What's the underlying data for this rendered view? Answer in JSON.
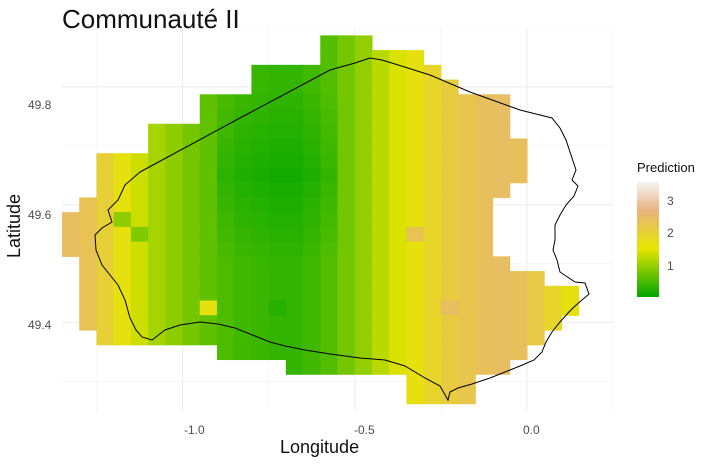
{
  "title": "Communauté II",
  "chart_data": {
    "type": "heatmap",
    "title": "Communauté II",
    "xlabel": "Longitude",
    "ylabel": "Latitude",
    "xlim": [
      -1.35,
      0.25
    ],
    "ylim": [
      49.25,
      49.9
    ],
    "x_ticks": [
      -1.0,
      -0.5,
      0.0
    ],
    "x_tick_labels": [
      "-1.0",
      "-0.5",
      "0.0"
    ],
    "y_ticks": [
      49.4,
      49.6,
      49.8
    ],
    "y_tick_labels": [
      "49.4",
      "49.6",
      "49.8"
    ],
    "grid": true,
    "legend": {
      "title": "Prediction",
      "position": "right",
      "range": [
        0.2,
        3.7
      ],
      "ticks": [
        1,
        2,
        3
      ],
      "tick_labels": [
        "1",
        "2",
        "3"
      ],
      "colors": [
        "#00a600",
        "#e6e600",
        "#e9b27e",
        "#f5f5f5"
      ]
    },
    "cell_size": {
      "lon": 0.05,
      "lat": 0.025
    },
    "grid_origin": {
      "lon": -1.325,
      "lat": 49.875
    },
    "rows": [
      {
        "lat": 49.875,
        "start": 15,
        "end": 17
      },
      {
        "lat": 49.85,
        "start": 15,
        "end": 20
      },
      {
        "lat": 49.825,
        "start": 11,
        "end": 21
      },
      {
        "lat": 49.8,
        "start": 11,
        "end": 22
      },
      {
        "lat": 49.775,
        "start": 8,
        "end": 25
      },
      {
        "lat": 49.75,
        "start": 8,
        "end": 25
      },
      {
        "lat": 49.725,
        "start": 5,
        "end": 25
      },
      {
        "lat": 49.7,
        "start": 5,
        "end": 26
      },
      {
        "lat": 49.675,
        "start": 2,
        "end": 26
      },
      {
        "lat": 49.65,
        "start": 2,
        "end": 26
      },
      {
        "lat": 49.625,
        "start": 2,
        "end": 25
      },
      {
        "lat": 49.6,
        "start": 1,
        "end": 24
      },
      {
        "lat": 49.575,
        "start": 0,
        "end": 24
      },
      {
        "lat": 49.55,
        "start": 0,
        "end": 24
      },
      {
        "lat": 49.525,
        "start": 0,
        "end": 24
      },
      {
        "lat": 49.5,
        "start": 1,
        "end": 25
      },
      {
        "lat": 49.475,
        "start": 1,
        "end": 27
      },
      {
        "lat": 49.45,
        "start": 1,
        "end": 29
      },
      {
        "lat": 49.425,
        "start": 1,
        "end": 29
      },
      {
        "lat": 49.4,
        "start": 1,
        "end": 28
      },
      {
        "lat": 49.375,
        "start": 2,
        "end": 27
      },
      {
        "lat": 49.35,
        "start": 9,
        "end": 26
      },
      {
        "lat": 49.325,
        "start": 13,
        "end": 25
      },
      {
        "lat": 49.3,
        "start": 20,
        "end": 23
      },
      {
        "lat": 49.275,
        "start": 20,
        "end": 23
      }
    ],
    "column_prediction": [
      2.7,
      2.6,
      2.4,
      2.1,
      1.8,
      1.5,
      1.3,
      1.1,
      0.95,
      0.8,
      0.7,
      0.65,
      0.6,
      0.6,
      0.7,
      0.85,
      1.1,
      1.35,
      1.65,
      1.9,
      2.1,
      2.3,
      2.45,
      2.55,
      2.65,
      2.7,
      2.65,
      2.5,
      2.3,
      2.1
    ],
    "anomalies": [
      {
        "col": 3,
        "row": 12,
        "value": 1.3
      },
      {
        "col": 4,
        "row": 13,
        "value": 1.2
      },
      {
        "col": 5,
        "row": 18,
        "value": 1.5
      },
      {
        "col": 8,
        "row": 18,
        "value": 2.1
      },
      {
        "col": 12,
        "row": 18,
        "value": 0.5
      },
      {
        "col": 20,
        "row": 13,
        "value": 2.6
      },
      {
        "col": 22,
        "row": 18,
        "value": 2.7
      }
    ]
  }
}
